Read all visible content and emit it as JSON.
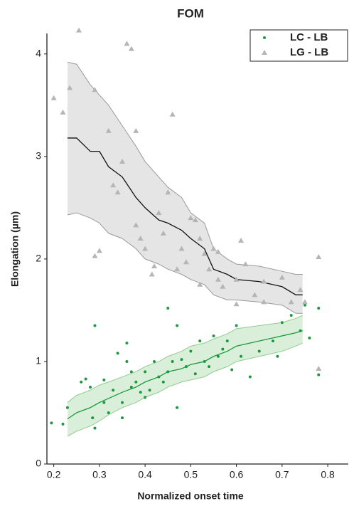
{
  "chart_data": {
    "type": "scatter",
    "title": "FOM",
    "x_label": "Normalized onset time",
    "y_label": "Elongation (µm)",
    "xlim": [
      0.185,
      0.845
    ],
    "ylim": [
      0,
      4.2
    ],
    "xticks": [
      0.2,
      0.3,
      0.4,
      0.5,
      0.6,
      0.7,
      0.8
    ],
    "yticks": [
      0,
      1,
      2,
      3,
      4
    ],
    "grid": false,
    "legend": "upper right",
    "series": [
      {
        "name": "LC - LB",
        "color": "#1a9a3c",
        "marker": "circle",
        "x": [
          0.195,
          0.22,
          0.23,
          0.26,
          0.27,
          0.28,
          0.29,
          0.285,
          0.29,
          0.31,
          0.31,
          0.32,
          0.33,
          0.34,
          0.35,
          0.35,
          0.36,
          0.36,
          0.37,
          0.37,
          0.38,
          0.39,
          0.4,
          0.4,
          0.41,
          0.42,
          0.43,
          0.44,
          0.45,
          0.45,
          0.46,
          0.47,
          0.47,
          0.48,
          0.49,
          0.5,
          0.51,
          0.52,
          0.53,
          0.54,
          0.55,
          0.56,
          0.57,
          0.58,
          0.59,
          0.6,
          0.61,
          0.63,
          0.65,
          0.68,
          0.69,
          0.7,
          0.72,
          0.74,
          0.76,
          0.78,
          0.78,
          0.75
        ],
        "values": [
          0.4,
          0.39,
          0.55,
          0.8,
          0.83,
          0.75,
          1.35,
          0.45,
          0.35,
          0.6,
          0.82,
          0.5,
          0.72,
          1.08,
          0.6,
          0.45,
          1.0,
          1.18,
          0.9,
          0.75,
          0.8,
          0.7,
          0.65,
          0.9,
          0.72,
          1.0,
          0.85,
          0.8,
          0.9,
          1.52,
          1.0,
          0.55,
          1.35,
          1.02,
          0.95,
          1.1,
          0.88,
          1.2,
          1.0,
          0.95,
          1.25,
          1.05,
          1.12,
          1.2,
          0.92,
          1.35,
          1.05,
          0.85,
          1.1,
          1.2,
          1.05,
          1.38,
          1.45,
          1.3,
          1.23,
          1.52,
          0.87,
          1.55
        ]
      },
      {
        "name": "LG - LB",
        "color": "#b5b5b5",
        "marker": "triangle",
        "x": [
          0.2,
          0.22,
          0.235,
          0.255,
          0.29,
          0.29,
          0.3,
          0.32,
          0.36,
          0.37,
          0.35,
          0.33,
          0.34,
          0.38,
          0.38,
          0.39,
          0.4,
          0.42,
          0.415,
          0.43,
          0.45,
          0.46,
          0.44,
          0.47,
          0.48,
          0.49,
          0.5,
          0.51,
          0.52,
          0.53,
          0.54,
          0.55,
          0.56,
          0.52,
          0.56,
          0.6,
          0.61,
          0.62,
          0.64,
          0.66,
          0.7,
          0.72,
          0.74,
          0.75,
          0.78,
          0.78,
          0.66,
          0.57,
          0.6
        ],
        "values": [
          3.57,
          3.43,
          3.67,
          4.23,
          3.65,
          2.03,
          2.08,
          3.25,
          4.1,
          4.05,
          2.95,
          2.72,
          2.65,
          2.33,
          3.25,
          2.2,
          2.1,
          1.93,
          1.85,
          2.45,
          2.65,
          3.41,
          2.25,
          1.9,
          2.1,
          1.97,
          2.4,
          2.38,
          2.2,
          2.05,
          1.9,
          2.1,
          1.8,
          1.75,
          2.07,
          1.8,
          2.18,
          1.95,
          1.65,
          1.78,
          1.82,
          1.58,
          1.7,
          1.58,
          2.02,
          0.93,
          1.58,
          1.73,
          1.56
        ]
      }
    ],
    "trends": [
      {
        "color": "#1a9a3c",
        "fill": "#d3ecd3",
        "edge": "#8fcb8f",
        "x": [
          0.23,
          0.25,
          0.28,
          0.3,
          0.32,
          0.35,
          0.38,
          0.4,
          0.43,
          0.45,
          0.48,
          0.5,
          0.53,
          0.55,
          0.58,
          0.6,
          0.65,
          0.7,
          0.73,
          0.745
        ],
        "mean": [
          0.44,
          0.5,
          0.55,
          0.6,
          0.64,
          0.7,
          0.75,
          0.8,
          0.85,
          0.9,
          0.93,
          0.97,
          1.0,
          1.05,
          1.1,
          1.15,
          1.2,
          1.25,
          1.28,
          1.3
        ],
        "upper": [
          0.6,
          0.67,
          0.72,
          0.77,
          0.8,
          0.85,
          0.9,
          0.95,
          1.0,
          1.05,
          1.1,
          1.15,
          1.18,
          1.22,
          1.27,
          1.32,
          1.35,
          1.38,
          1.42,
          1.45
        ],
        "lower": [
          0.27,
          0.32,
          0.37,
          0.42,
          0.48,
          0.55,
          0.6,
          0.65,
          0.7,
          0.75,
          0.8,
          0.82,
          0.85,
          0.9,
          0.95,
          1.0,
          1.05,
          1.1,
          1.15,
          1.18
        ]
      },
      {
        "color": "#111111",
        "fill": "#e0e0e0",
        "edge": "#9a9a9a",
        "x": [
          0.23,
          0.25,
          0.28,
          0.3,
          0.32,
          0.35,
          0.38,
          0.4,
          0.43,
          0.45,
          0.48,
          0.5,
          0.53,
          0.55,
          0.58,
          0.6,
          0.65,
          0.7,
          0.73,
          0.745
        ],
        "mean": [
          3.18,
          3.18,
          3.05,
          3.05,
          2.9,
          2.8,
          2.6,
          2.5,
          2.38,
          2.35,
          2.28,
          2.2,
          2.1,
          1.9,
          1.85,
          1.8,
          1.78,
          1.73,
          1.65,
          1.65
        ],
        "upper": [
          3.92,
          3.9,
          3.7,
          3.6,
          3.5,
          3.3,
          3.1,
          2.95,
          2.8,
          2.7,
          2.6,
          2.45,
          2.35,
          2.1,
          2.0,
          1.95,
          1.93,
          1.88,
          1.85,
          1.85
        ],
        "lower": [
          2.43,
          2.45,
          2.4,
          2.35,
          2.25,
          2.2,
          2.1,
          2.0,
          1.95,
          1.9,
          1.85,
          1.8,
          1.75,
          1.65,
          1.6,
          1.6,
          1.58,
          1.55,
          1.47,
          1.47
        ]
      }
    ]
  }
}
